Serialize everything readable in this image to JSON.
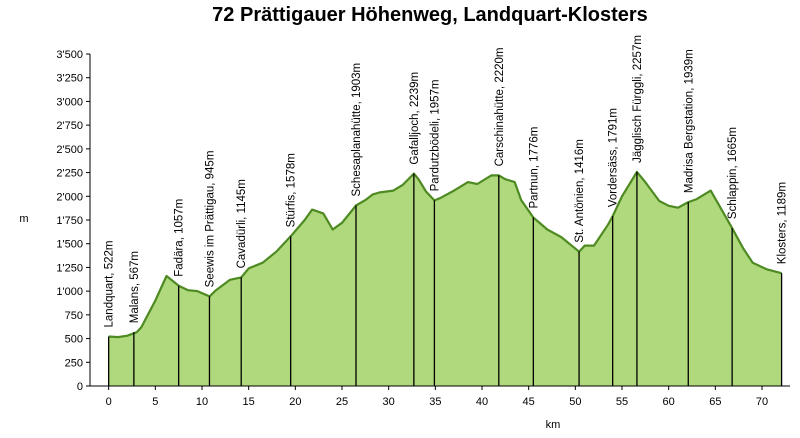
{
  "chart_data": {
    "type": "area",
    "title": "72 Prättigauer Höhenweg, Landquart-Klosters",
    "xlabel": "km",
    "ylabel": "m",
    "xlim": [
      -2,
      73
    ],
    "ylim": [
      0,
      3500
    ],
    "x_ticks": [
      0,
      5,
      10,
      15,
      20,
      25,
      30,
      35,
      40,
      45,
      50,
      55,
      60,
      65,
      70
    ],
    "y_ticks": [
      0,
      250,
      500,
      750,
      1000,
      1250,
      1500,
      1750,
      2000,
      2250,
      2500,
      2750,
      3000,
      3250,
      3500
    ],
    "y_tick_labels": [
      "0",
      "250",
      "500",
      "750",
      "1'000",
      "1'250",
      "1'500",
      "1'750",
      "2'000",
      "2'250",
      "2'500",
      "2'750",
      "3'000",
      "3'250",
      "3'500"
    ],
    "colors": {
      "fill": "#b0d87c",
      "line": "#4e8a22",
      "waypoint_line": "#000000",
      "grid": "#dddddd"
    },
    "grid": false,
    "profile": [
      [
        0,
        522
      ],
      [
        1,
        515
      ],
      [
        2,
        530
      ],
      [
        3,
        567
      ],
      [
        3.5,
        620
      ],
      [
        5,
        900
      ],
      [
        6.2,
        1160
      ],
      [
        7.5,
        1057
      ],
      [
        8.5,
        1010
      ],
      [
        9.5,
        1000
      ],
      [
        10.8,
        945
      ],
      [
        11.5,
        1010
      ],
      [
        13,
        1120
      ],
      [
        14.2,
        1145
      ],
      [
        15,
        1240
      ],
      [
        16.5,
        1300
      ],
      [
        18,
        1420
      ],
      [
        19.5,
        1578
      ],
      [
        21,
        1750
      ],
      [
        21.8,
        1860
      ],
      [
        23,
        1820
      ],
      [
        24,
        1650
      ],
      [
        25,
        1720
      ],
      [
        26.5,
        1903
      ],
      [
        27.5,
        1960
      ],
      [
        28.3,
        2020
      ],
      [
        29,
        2040
      ],
      [
        30.5,
        2060
      ],
      [
        31.5,
        2120
      ],
      [
        32.7,
        2239
      ],
      [
        33.2,
        2180
      ],
      [
        34,
        2050
      ],
      [
        34.9,
        1957
      ],
      [
        35.5,
        1980
      ],
      [
        37,
        2060
      ],
      [
        38.5,
        2150
      ],
      [
        39.5,
        2130
      ],
      [
        41,
        2220
      ],
      [
        41.8,
        2220
      ],
      [
        42.5,
        2180
      ],
      [
        43.5,
        2150
      ],
      [
        44.2,
        1960
      ],
      [
        45.5,
        1776
      ],
      [
        47,
        1650
      ],
      [
        48.5,
        1570
      ],
      [
        50.4,
        1416
      ],
      [
        51,
        1480
      ],
      [
        52,
        1480
      ],
      [
        53.5,
        1700
      ],
      [
        54,
        1791
      ],
      [
        55,
        2000
      ],
      [
        56.6,
        2257
      ],
      [
        57.5,
        2150
      ],
      [
        59,
        1950
      ],
      [
        60,
        1900
      ],
      [
        61,
        1880
      ],
      [
        62.1,
        1939
      ],
      [
        63,
        1970
      ],
      [
        64.5,
        2060
      ],
      [
        66.8,
        1665
      ],
      [
        68,
        1450
      ],
      [
        69,
        1300
      ],
      [
        70.5,
        1230
      ],
      [
        72.1,
        1189
      ]
    ],
    "waypoints": [
      {
        "x": 0,
        "y": 522,
        "label": "Landquart, 522m"
      },
      {
        "x": 2.7,
        "y": 567,
        "label": "Malans, 567m"
      },
      {
        "x": 7.5,
        "y": 1057,
        "label": "Fadära, 1057m"
      },
      {
        "x": 10.8,
        "y": 945,
        "label": "Seewis im Prättigau, 945m"
      },
      {
        "x": 14.2,
        "y": 1145,
        "label": "Cavadürli, 1145m"
      },
      {
        "x": 19.5,
        "y": 1578,
        "label": "Stürfis, 1578m"
      },
      {
        "x": 26.5,
        "y": 1903,
        "label": "Schesaplanahütte, 1903m"
      },
      {
        "x": 32.7,
        "y": 2239,
        "label": "Gafalljoch, 2239m"
      },
      {
        "x": 34.9,
        "y": 1957,
        "label": "Pardutzbödeli, 1957m"
      },
      {
        "x": 41.8,
        "y": 2220,
        "label": "Carschinahütte, 2220m"
      },
      {
        "x": 45.5,
        "y": 1776,
        "label": "Partnun, 1776m"
      },
      {
        "x": 50.4,
        "y": 1416,
        "label": "St. Antönien, 1416m"
      },
      {
        "x": 54,
        "y": 1791,
        "label": "Vordersäss, 1791m"
      },
      {
        "x": 56.6,
        "y": 2257,
        "label": "Jägglisch Fürggli, 2257m"
      },
      {
        "x": 62.1,
        "y": 1939,
        "label": "Madrisa Bergstation, 1939m"
      },
      {
        "x": 66.8,
        "y": 1665,
        "label": "Schlappin, 1665m"
      },
      {
        "x": 72.1,
        "y": 1189,
        "label": "Klosters, 1189m"
      }
    ]
  }
}
